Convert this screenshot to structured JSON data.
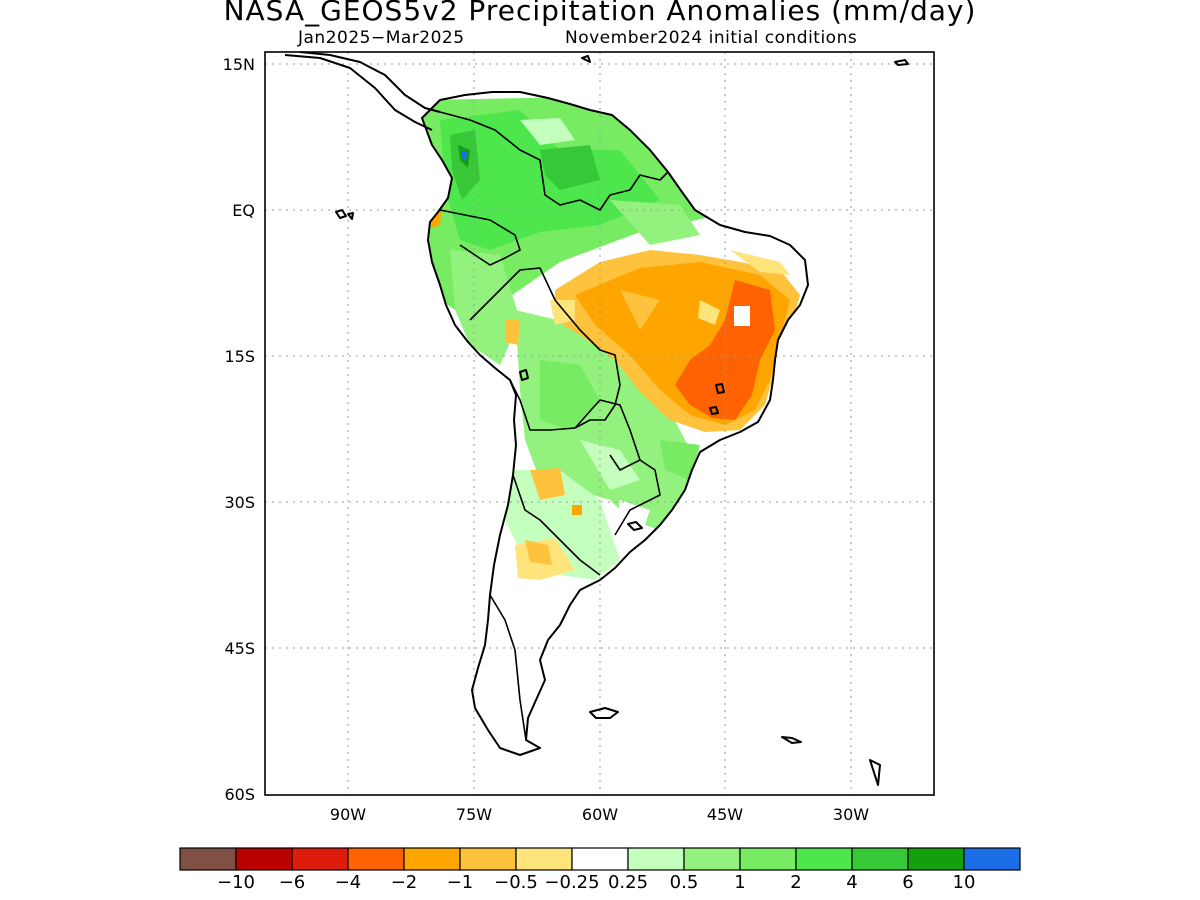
{
  "title": "NASA_GEOS5v2 Precipitation Anomalies (mm/day)",
  "subtitle_left": "Jan2025−Mar2025",
  "subtitle_right": "November2024 initial conditions",
  "lat_labels": [
    "15N",
    "EQ",
    "15S",
    "30S",
    "45S",
    "60S"
  ],
  "lon_labels": [
    "90W",
    "75W",
    "60W",
    "45W",
    "30W"
  ],
  "colorbar": {
    "colors": [
      "#7f5043",
      "#bb0000",
      "#dd1c0b",
      "#fe6201",
      "#fea500",
      "#fec23d",
      "#fee47a",
      "#ffffff",
      "#c5ffbd",
      "#92f27d",
      "#77ec63",
      "#4de64c",
      "#37c838",
      "#12a10d",
      "#1c6ee7"
    ],
    "labels": [
      "−10",
      "−6",
      "−4",
      "−2",
      "−1",
      "−0.5",
      "−0.25",
      "0.25",
      "0.5",
      "1",
      "2",
      "4",
      "6",
      "10"
    ]
  }
}
